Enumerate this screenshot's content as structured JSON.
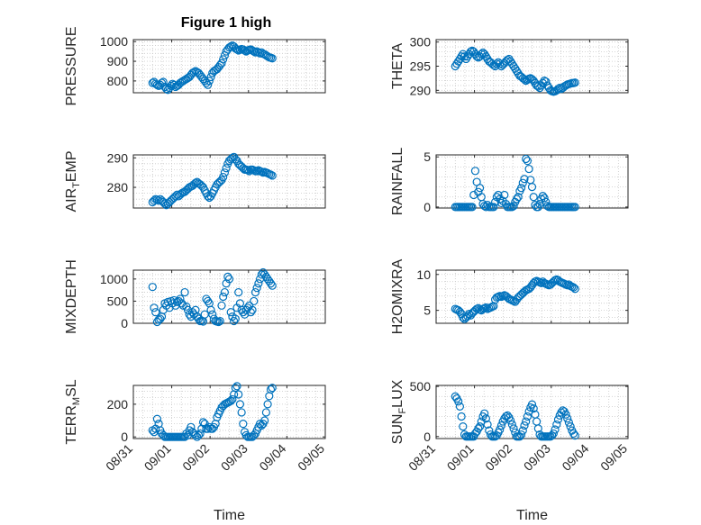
{
  "figure_title": "Figure 1 high",
  "marker_color": "#0072BD",
  "chart_data": [
    {
      "type": "scatter",
      "title": "Figure 1 high",
      "ylabel": "PRESSURE",
      "ylabel_sub": "",
      "ylim": [
        740,
        1010
      ],
      "yticks": [
        800,
        900,
        1000
      ],
      "x": [
        0.5,
        0.54,
        0.58,
        0.62,
        0.66,
        0.7,
        0.74,
        0.78,
        0.82,
        0.86,
        0.9,
        0.94,
        0.98,
        1.02,
        1.06,
        1.1,
        1.14,
        1.18,
        1.22,
        1.26,
        1.3,
        1.34,
        1.38,
        1.42,
        1.46,
        1.5,
        1.54,
        1.58,
        1.62,
        1.66,
        1.7,
        1.74,
        1.78,
        1.82,
        1.86,
        1.9,
        1.94,
        1.98,
        2.02,
        2.06,
        2.1,
        2.14,
        2.18,
        2.22,
        2.26,
        2.3,
        2.34,
        2.38,
        2.42,
        2.46,
        2.5,
        2.54,
        2.58,
        2.62,
        2.66,
        2.7,
        2.74,
        2.78,
        2.82,
        2.86,
        2.9,
        2.94,
        2.98,
        3.02,
        3.06,
        3.1,
        3.14,
        3.18,
        3.22,
        3.26,
        3.3,
        3.34,
        3.38,
        3.42,
        3.46,
        3.5,
        3.54,
        3.58,
        3.62
      ],
      "y": [
        790,
        795,
        785,
        780,
        775,
        780,
        790,
        795,
        770,
        760,
        755,
        765,
        775,
        785,
        780,
        770,
        775,
        780,
        790,
        795,
        800,
        805,
        810,
        815,
        820,
        830,
        840,
        845,
        850,
        845,
        840,
        830,
        820,
        810,
        800,
        790,
        780,
        800,
        820,
        840,
        850,
        855,
        860,
        870,
        880,
        890,
        910,
        930,
        950,
        960,
        970,
        975,
        980,
        975,
        965,
        960,
        955,
        958,
        962,
        960,
        955,
        950,
        955,
        958,
        960,
        955,
        950,
        945,
        950,
        945,
        940,
        945,
        938,
        935,
        930,
        925,
        920,
        918,
        915
      ]
    },
    {
      "type": "scatter",
      "title": "",
      "ylabel": "THETA",
      "ylabel_sub": "",
      "ylim": [
        289.5,
        300.5
      ],
      "yticks": [
        290,
        295,
        300
      ],
      "x": [
        0.5,
        0.54,
        0.58,
        0.62,
        0.66,
        0.7,
        0.74,
        0.78,
        0.82,
        0.86,
        0.9,
        0.94,
        0.98,
        1.02,
        1.06,
        1.1,
        1.14,
        1.18,
        1.22,
        1.26,
        1.3,
        1.34,
        1.38,
        1.42,
        1.46,
        1.5,
        1.54,
        1.58,
        1.62,
        1.66,
        1.7,
        1.74,
        1.78,
        1.82,
        1.86,
        1.9,
        1.94,
        1.98,
        2.02,
        2.06,
        2.1,
        2.14,
        2.18,
        2.22,
        2.26,
        2.3,
        2.34,
        2.38,
        2.42,
        2.46,
        2.5,
        2.54,
        2.58,
        2.62,
        2.66,
        2.7,
        2.74,
        2.78,
        2.82,
        2.86,
        2.9,
        2.94,
        2.98,
        3.02,
        3.06,
        3.1,
        3.14,
        3.18,
        3.22,
        3.26,
        3.3,
        3.34,
        3.38,
        3.42,
        3.46,
        3.5,
        3.54,
        3.58,
        3.62
      ],
      "y": [
        295,
        295.5,
        296,
        296.5,
        297,
        297.5,
        297,
        296.5,
        297,
        297.5,
        298,
        298.2,
        298,
        297.5,
        297,
        296.8,
        297,
        297.5,
        297.8,
        297.5,
        297,
        296.5,
        296,
        295.8,
        295.5,
        295.2,
        295,
        295.5,
        295.8,
        295.5,
        295,
        295.3,
        295.6,
        296,
        296.3,
        296.5,
        296,
        295.5,
        295,
        294.5,
        294,
        293.5,
        293,
        292.8,
        292.5,
        292.3,
        292,
        292.2,
        292.4,
        292.5,
        292.3,
        292,
        291.5,
        291,
        290.8,
        290.5,
        291,
        291.5,
        292,
        291.8,
        291,
        290.5,
        290,
        289.8,
        289.7,
        289.8,
        290,
        290.3,
        290.5,
        290.3,
        290.5,
        290.8,
        291,
        291.2,
        291.3,
        291.4,
        291.5,
        291.5,
        291.6
      ]
    },
    {
      "type": "scatter",
      "title": "",
      "ylabel": "AIR",
      "ylabel_sub": "T",
      "ylabel_after": "EMP",
      "ylim": [
        273,
        291
      ],
      "yticks": [
        280,
        290
      ],
      "x": [
        0.5,
        0.54,
        0.58,
        0.62,
        0.66,
        0.7,
        0.74,
        0.78,
        0.82,
        0.86,
        0.9,
        0.94,
        0.98,
        1.02,
        1.06,
        1.1,
        1.14,
        1.18,
        1.22,
        1.26,
        1.3,
        1.34,
        1.38,
        1.42,
        1.46,
        1.5,
        1.54,
        1.58,
        1.62,
        1.66,
        1.7,
        1.74,
        1.78,
        1.82,
        1.86,
        1.9,
        1.94,
        1.98,
        2.02,
        2.06,
        2.1,
        2.14,
        2.18,
        2.22,
        2.26,
        2.3,
        2.34,
        2.38,
        2.42,
        2.46,
        2.5,
        2.54,
        2.58,
        2.62,
        2.66,
        2.7,
        2.74,
        2.78,
        2.82,
        2.86,
        2.9,
        2.94,
        2.98,
        3.02,
        3.06,
        3.1,
        3.14,
        3.18,
        3.22,
        3.26,
        3.3,
        3.34,
        3.38,
        3.42,
        3.46,
        3.5,
        3.54,
        3.58,
        3.62
      ],
      "y": [
        275,
        275.5,
        276,
        275.8,
        275.5,
        276,
        275.5,
        275,
        274.5,
        274,
        274.5,
        275,
        275.5,
        276,
        276.5,
        277,
        277.5,
        277,
        277.5,
        278,
        278.3,
        278.5,
        279,
        279.5,
        280,
        280.3,
        280.5,
        281,
        281.5,
        281.8,
        281.3,
        281,
        280.5,
        280,
        279,
        278,
        277,
        276.5,
        277,
        278,
        279,
        280,
        281,
        281.5,
        282,
        282.5,
        283.5,
        285,
        286.5,
        288,
        289,
        289.5,
        290,
        290.3,
        289.5,
        289,
        288,
        287.5,
        287,
        286.5,
        286,
        286,
        285.8,
        285.5,
        286,
        286,
        285.8,
        285.5,
        285.5,
        285.8,
        285.5,
        285.3,
        285,
        285.2,
        285,
        284.8,
        284.5,
        284.3,
        284
      ]
    },
    {
      "type": "scatter",
      "title": "",
      "ylabel": "RAINFALL",
      "ylabel_sub": "",
      "ylim": [
        -0.1,
        5.2
      ],
      "yticks": [
        0,
        5
      ],
      "x": [
        0.5,
        0.54,
        0.58,
        0.62,
        0.66,
        0.7,
        0.74,
        0.78,
        0.82,
        0.86,
        0.9,
        0.94,
        0.98,
        1.02,
        1.06,
        1.1,
        1.14,
        1.18,
        1.22,
        1.26,
        1.3,
        1.34,
        1.38,
        1.42,
        1.46,
        1.5,
        1.54,
        1.58,
        1.62,
        1.66,
        1.7,
        1.74,
        1.78,
        1.82,
        1.86,
        1.9,
        1.94,
        1.98,
        2.02,
        2.06,
        2.1,
        2.14,
        2.18,
        2.22,
        2.26,
        2.3,
        2.34,
        2.38,
        2.42,
        2.46,
        2.5,
        2.54,
        2.58,
        2.62,
        2.66,
        2.7,
        2.74,
        2.78,
        2.82,
        2.86,
        2.9,
        2.94,
        2.98,
        3.02,
        3.06,
        3.1,
        3.14,
        3.18,
        3.22,
        3.26,
        3.3,
        3.34,
        3.38,
        3.42,
        3.46,
        3.5,
        3.54,
        3.58,
        3.62
      ],
      "y": [
        0,
        0,
        0,
        0,
        0,
        0,
        0,
        0,
        0,
        0,
        0,
        0,
        1.2,
        3.6,
        2.5,
        1.5,
        1.9,
        1,
        0.3,
        0.1,
        0,
        0.2,
        0,
        0,
        0,
        0,
        0.5,
        1,
        1.2,
        0.8,
        0.4,
        0.6,
        1.2,
        0.3,
        0,
        0,
        0,
        0,
        0.1,
        0.5,
        0.8,
        1,
        1.6,
        1.9,
        2.4,
        2.8,
        4.8,
        4.6,
        3.8,
        2.7,
        2,
        1,
        0.2,
        0,
        0,
        0.3,
        0.8,
        1.1,
        0.9,
        0.5,
        0.1,
        0,
        0,
        0,
        0,
        0,
        0,
        0,
        0,
        0,
        0,
        0,
        0,
        0,
        0,
        0,
        0,
        0,
        0
      ]
    },
    {
      "type": "scatter",
      "title": "",
      "ylabel": "MIXDEPTH",
      "ylabel_sub": "",
      "ylim": [
        0,
        1200
      ],
      "yticks": [
        0,
        500,
        1000
      ],
      "x": [
        0.5,
        0.54,
        0.58,
        0.62,
        0.66,
        0.7,
        0.74,
        0.78,
        0.82,
        0.86,
        0.9,
        0.94,
        0.98,
        1.02,
        1.06,
        1.1,
        1.14,
        1.18,
        1.22,
        1.26,
        1.3,
        1.34,
        1.38,
        1.42,
        1.46,
        1.5,
        1.54,
        1.58,
        1.62,
        1.66,
        1.7,
        1.74,
        1.78,
        1.82,
        1.86,
        1.9,
        1.94,
        1.98,
        2.02,
        2.06,
        2.1,
        2.14,
        2.18,
        2.22,
        2.26,
        2.3,
        2.34,
        2.38,
        2.42,
        2.46,
        2.5,
        2.54,
        2.58,
        2.62,
        2.66,
        2.7,
        2.74,
        2.78,
        2.82,
        2.86,
        2.9,
        2.94,
        2.98,
        3.02,
        3.06,
        3.1,
        3.14,
        3.18,
        3.22,
        3.26,
        3.3,
        3.34,
        3.38,
        3.42,
        3.46,
        3.5,
        3.54,
        3.58,
        3.62
      ],
      "y": [
        820,
        350,
        250,
        30,
        80,
        100,
        150,
        300,
        450,
        400,
        480,
        350,
        500,
        450,
        520,
        400,
        480,
        500,
        550,
        450,
        400,
        700,
        380,
        300,
        200,
        150,
        250,
        200,
        300,
        150,
        100,
        50,
        60,
        40,
        200,
        550,
        500,
        450,
        300,
        200,
        100,
        50,
        40,
        30,
        50,
        400,
        600,
        700,
        900,
        1050,
        1000,
        250,
        150,
        50,
        100,
        350,
        700,
        450,
        300,
        250,
        200,
        300,
        350,
        400,
        250,
        300,
        500,
        700,
        800,
        900,
        1000,
        1100,
        1150,
        1100,
        1050,
        1000,
        950,
        900,
        850
      ]
    },
    {
      "type": "scatter",
      "title": "",
      "ylabel": "H2OMIXRA",
      "ylabel_sub": "",
      "ylim": [
        3.2,
        10.6
      ],
      "yticks": [
        5,
        10
      ],
      "x": [
        0.5,
        0.54,
        0.58,
        0.62,
        0.66,
        0.7,
        0.74,
        0.78,
        0.82,
        0.86,
        0.9,
        0.94,
        0.98,
        1.02,
        1.06,
        1.1,
        1.14,
        1.18,
        1.22,
        1.26,
        1.3,
        1.34,
        1.38,
        1.42,
        1.46,
        1.5,
        1.54,
        1.58,
        1.62,
        1.66,
        1.7,
        1.74,
        1.78,
        1.82,
        1.86,
        1.9,
        1.94,
        1.98,
        2.02,
        2.06,
        2.1,
        2.14,
        2.18,
        2.22,
        2.26,
        2.3,
        2.34,
        2.38,
        2.42,
        2.46,
        2.5,
        2.54,
        2.58,
        2.62,
        2.66,
        2.7,
        2.74,
        2.78,
        2.82,
        2.86,
        2.9,
        2.94,
        2.98,
        3.02,
        3.06,
        3.1,
        3.14,
        3.18,
        3.22,
        3.26,
        3.3,
        3.34,
        3.38,
        3.42,
        3.46,
        3.5,
        3.54,
        3.58,
        3.62
      ],
      "y": [
        5.2,
        5.1,
        5,
        4.8,
        4.5,
        4,
        3.8,
        4,
        4.2,
        4.5,
        4.3,
        4.6,
        4.8,
        5,
        5.2,
        5.3,
        5.1,
        5,
        5.2,
        5.3,
        5.4,
        5.2,
        5.3,
        5.4,
        5.5,
        5.6,
        6.5,
        6.8,
        6.9,
        7,
        6.9,
        7,
        7.1,
        7,
        6.8,
        6.6,
        6.5,
        6.4,
        6.3,
        6.2,
        6.5,
        6.8,
        7,
        7.2,
        7.4,
        7.6,
        7.8,
        7.9,
        8,
        8.2,
        8.5,
        8.8,
        9,
        9.1,
        9,
        8.9,
        8.8,
        9,
        8.8,
        8.7,
        8.6,
        8.5,
        8.6,
        8.8,
        9,
        9.2,
        9.3,
        9.2,
        9,
        8.9,
        8.8,
        8.7,
        8.6,
        8.5,
        8.6,
        8.4,
        8.3,
        8.2,
        8
      ]
    },
    {
      "type": "scatter",
      "title": "",
      "ylabel": "TERR",
      "ylabel_sub": "M",
      "ylabel_after": "SL",
      "ylim": [
        -10,
        315
      ],
      "yticks": [
        0,
        200
      ],
      "x": [
        0.5,
        0.54,
        0.58,
        0.62,
        0.66,
        0.7,
        0.74,
        0.78,
        0.82,
        0.86,
        0.9,
        0.94,
        0.98,
        1.02,
        1.06,
        1.1,
        1.14,
        1.18,
        1.22,
        1.26,
        1.3,
        1.34,
        1.38,
        1.42,
        1.46,
        1.5,
        1.54,
        1.58,
        1.62,
        1.66,
        1.7,
        1.74,
        1.78,
        1.82,
        1.86,
        1.9,
        1.94,
        1.98,
        2.02,
        2.06,
        2.1,
        2.14,
        2.18,
        2.22,
        2.26,
        2.3,
        2.34,
        2.38,
        2.42,
        2.46,
        2.5,
        2.54,
        2.58,
        2.62,
        2.66,
        2.7,
        2.74,
        2.78,
        2.82,
        2.86,
        2.9,
        2.94,
        2.98,
        3.02,
        3.06,
        3.1,
        3.14,
        3.18,
        3.22,
        3.26,
        3.3,
        3.34,
        3.38,
        3.42,
        3.46,
        3.5,
        3.54,
        3.58,
        3.62
      ],
      "y": [
        40,
        30,
        50,
        110,
        80,
        40,
        20,
        10,
        0,
        0,
        0,
        0,
        0,
        0,
        0,
        0,
        0,
        0,
        0,
        0,
        0,
        0,
        20,
        10,
        40,
        60,
        30,
        20,
        10,
        0,
        10,
        20,
        50,
        90,
        80,
        50,
        50,
        60,
        50,
        50,
        60,
        80,
        120,
        140,
        160,
        180,
        190,
        200,
        205,
        210,
        215,
        220,
        230,
        260,
        300,
        310,
        260,
        200,
        150,
        80,
        30,
        10,
        0,
        0,
        0,
        0,
        10,
        20,
        40,
        60,
        80,
        70,
        80,
        100,
        150,
        200,
        250,
        290,
        300
      ]
    },
    {
      "type": "scatter",
      "title": "",
      "ylabel": "SUN",
      "ylabel_sub": "F",
      "ylabel_after": "LUX",
      "ylim": [
        -20,
        510
      ],
      "yticks": [
        0,
        500
      ],
      "x": [
        0.5,
        0.54,
        0.58,
        0.62,
        0.66,
        0.7,
        0.74,
        0.78,
        0.82,
        0.86,
        0.9,
        0.94,
        0.98,
        1.02,
        1.06,
        1.1,
        1.14,
        1.18,
        1.22,
        1.26,
        1.3,
        1.34,
        1.38,
        1.42,
        1.46,
        1.5,
        1.54,
        1.58,
        1.62,
        1.66,
        1.7,
        1.74,
        1.78,
        1.82,
        1.86,
        1.9,
        1.94,
        1.98,
        2.02,
        2.06,
        2.1,
        2.14,
        2.18,
        2.22,
        2.26,
        2.3,
        2.34,
        2.38,
        2.42,
        2.46,
        2.5,
        2.54,
        2.58,
        2.62,
        2.66,
        2.7,
        2.74,
        2.78,
        2.82,
        2.86,
        2.9,
        2.94,
        2.98,
        3.02,
        3.06,
        3.1,
        3.14,
        3.18,
        3.22,
        3.26,
        3.3,
        3.34,
        3.38,
        3.42,
        3.46,
        3.5,
        3.54,
        3.58,
        3.62
      ],
      "y": [
        400,
        380,
        350,
        300,
        200,
        100,
        20,
        0,
        0,
        0,
        0,
        0,
        0,
        30,
        50,
        80,
        100,
        150,
        200,
        230,
        180,
        120,
        60,
        20,
        0,
        0,
        0,
        10,
        40,
        70,
        110,
        150,
        180,
        200,
        210,
        190,
        160,
        120,
        80,
        40,
        0,
        0,
        0,
        20,
        60,
        110,
        150,
        200,
        250,
        290,
        320,
        280,
        220,
        150,
        80,
        20,
        0,
        0,
        0,
        0,
        0,
        0,
        0,
        10,
        30,
        70,
        120,
        170,
        210,
        240,
        260,
        250,
        220,
        180,
        140,
        100,
        60,
        30,
        10
      ]
    }
  ],
  "shared_x": {
    "label": "Time",
    "xlim": [
      0,
      5
    ],
    "ticks": [
      0,
      1,
      2,
      3,
      4,
      5
    ],
    "tick_labels": [
      "08/31",
      "09/01",
      "09/02",
      "09/03",
      "09/04",
      "09/05"
    ]
  }
}
